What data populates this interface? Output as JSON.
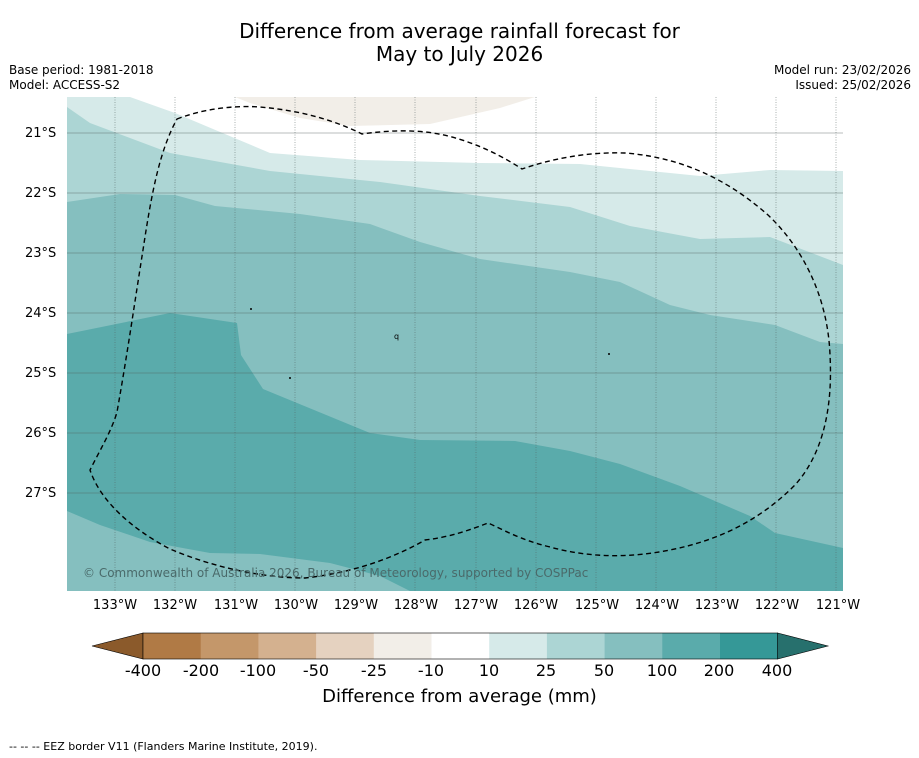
{
  "title": {
    "line1": "Difference from average rainfall forecast for",
    "line2": "May to July 2026"
  },
  "meta": {
    "base_period": "Base period: 1981-2018",
    "model": "Model: ACCESS-S2",
    "model_run": "Model run: 23/02/2026",
    "issued": "Issued: 25/02/2026"
  },
  "map": {
    "lat_labels": [
      "21°S",
      "22°S",
      "23°S",
      "24°S",
      "25°S",
      "26°S",
      "27°S"
    ],
    "lon_labels": [
      "133°W",
      "132°W",
      "131°W",
      "130°W",
      "129°W",
      "128°W",
      "127°W",
      "126°W",
      "125°W",
      "124°W",
      "123°W",
      "122°W",
      "121°W"
    ],
    "copyright": "© Commonwealth of Australia 2026, Bureau of Meteorology, supported by COSPPac",
    "island_marker": "q"
  },
  "colorbar": {
    "labels": [
      "-400",
      "-200",
      "-100",
      "-50",
      "-25",
      "-10",
      "10",
      "25",
      "50",
      "100",
      "200",
      "400"
    ],
    "colors": [
      "#8b5a2b",
      "#b07a45",
      "#c4976a",
      "#d4b18f",
      "#e5d2c0",
      "#f2eee8",
      "#ffffff",
      "#d6eae9",
      "#acd5d4",
      "#85bfbf",
      "#5aabab",
      "#359897",
      "#27706d"
    ],
    "title": "Difference from average (mm)"
  },
  "legend_note": "--  --  -- EEZ border V11 (Flanders Marine Institute, 2019)."
}
